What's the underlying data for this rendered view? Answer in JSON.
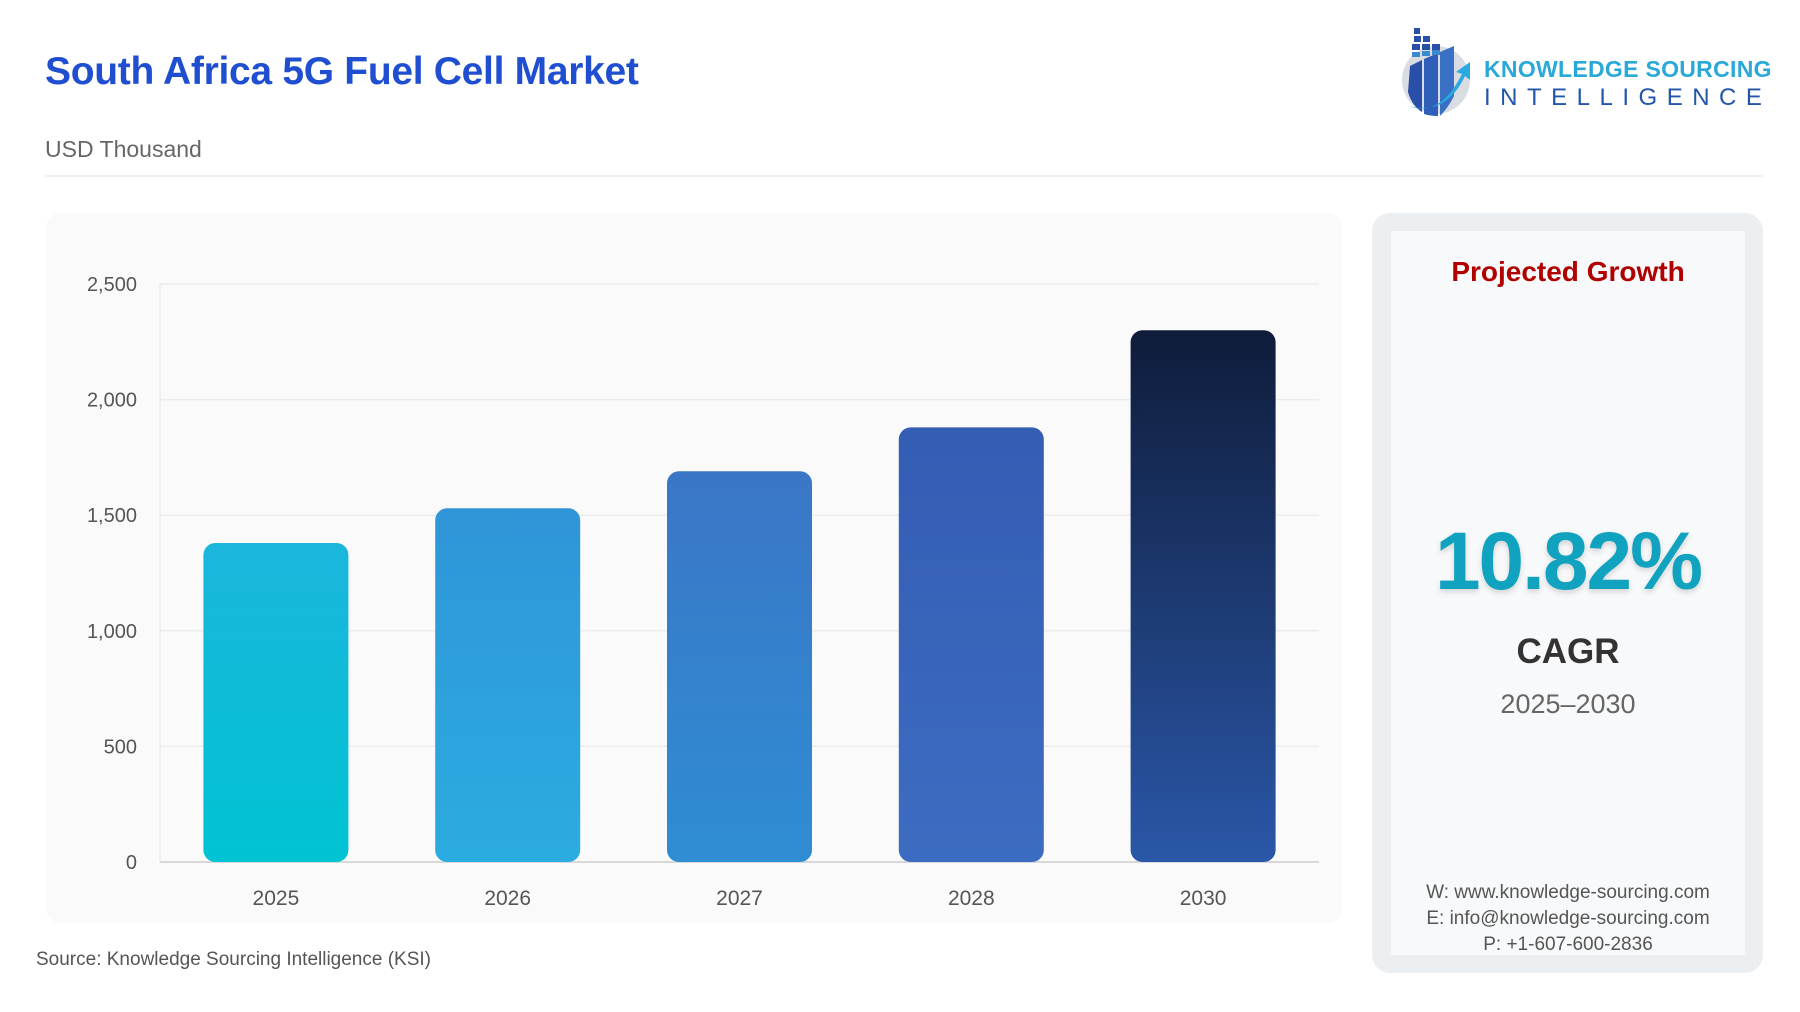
{
  "header": {
    "title": "South Africa 5G Fuel Cell Market",
    "subtitle": "USD Thousand"
  },
  "logo": {
    "line1": "KNOWLEDGE SOURCING",
    "line2": "INTELLIGENCE"
  },
  "chart_data": {
    "type": "bar",
    "title": "South Africa 5G Fuel Cell Market",
    "ylabel": "USD Thousand",
    "xlabel": "",
    "categories": [
      "2025",
      "2026",
      "2027",
      "2028",
      "2030"
    ],
    "values": [
      1380,
      1530,
      1690,
      1880,
      2300
    ],
    "ylim": [
      0,
      2500
    ],
    "yticks": [
      0,
      500,
      1000,
      1500,
      2000,
      2500
    ],
    "ytick_labels": [
      "0",
      "500",
      "1,000",
      "1,500",
      "2,000",
      "2,500"
    ],
    "grid": true,
    "legend": "none",
    "bar_colors": [
      [
        "#1bb6dc",
        "#00c3d3"
      ],
      [
        "#2f95d8",
        "#2bace0"
      ],
      [
        "#3a76c6",
        "#2f8dd3"
      ],
      [
        "#345db4",
        "#3c6cc1"
      ],
      [
        "#0f1c3a",
        "#2a57a8"
      ]
    ]
  },
  "side_panel": {
    "heading": "Projected Growth",
    "cagr_value": "10.82%",
    "cagr_label": "CAGR",
    "period": "2025–2030",
    "website": "W: www.knowledge-sourcing.com",
    "email": "E: info@knowledge-sourcing.com",
    "phone": "P: +1-607-600-2836",
    "colors": {
      "heading": "#b00000",
      "value": "#10a2bf"
    }
  },
  "footer": {
    "source": "Source: Knowledge Sourcing Intelligence (KSI)"
  }
}
